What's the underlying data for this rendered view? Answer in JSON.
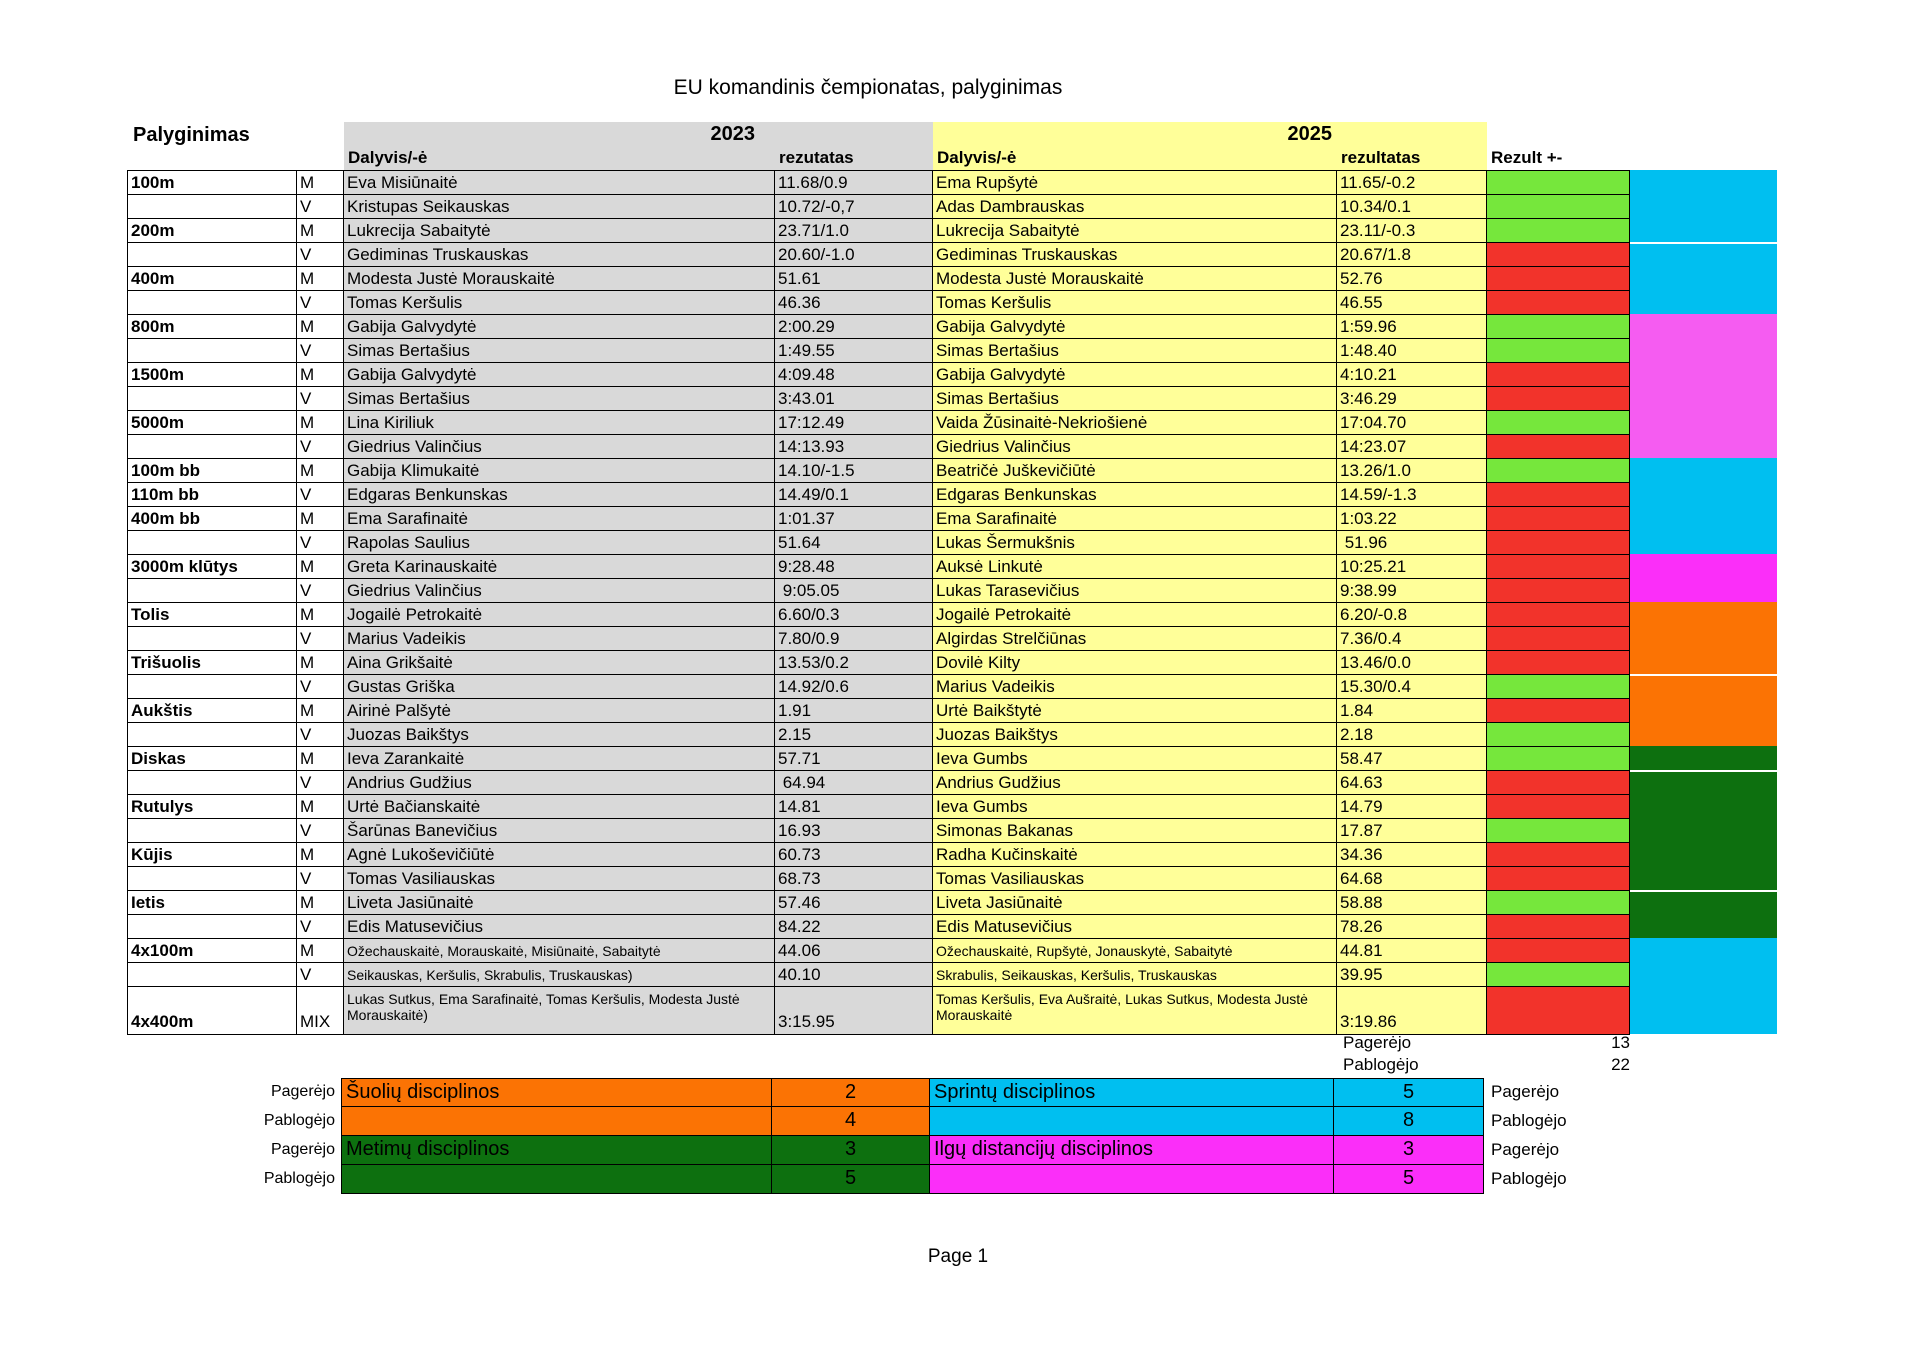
{
  "title": "EU komandinis čempionatas, palyginimas",
  "page_footer": "Page 1",
  "colors": {
    "gray": "#d9d9d9",
    "yellow": "#ffff99",
    "green": "#76e73c",
    "red": "#f2332b",
    "cyan": "#00bff0",
    "magenta_light": "#f55cf1",
    "magenta_bright": "#fb2ef9",
    "orange": "#fb7304",
    "dark_green": "#0d700f"
  },
  "table": {
    "corner_label": "Palyginimas",
    "year_left": "2023",
    "year_right": "2025",
    "col_participant_left": "Dalyvis/-ė",
    "col_result_left": "rezutatas",
    "col_participant_right": "Dalyvis/-ė",
    "col_result_right": "rezultatas",
    "col_diff": "Rezult +-",
    "rows": [
      {
        "event": "100m",
        "sex": "M",
        "p2023": "Eva Misiūnaitė",
        "r2023": "11.68/0.9",
        "p2025": "Ema Rupšytė",
        "r2025": "11.65/-0.2",
        "diff": "better"
      },
      {
        "event": "",
        "sex": "V",
        "p2023": "Kristupas Seikauskas",
        "r2023": "10.72/-0,7",
        "p2025": "Adas Dambrauskas",
        "r2025": "10.34/0.1",
        "diff": "better"
      },
      {
        "event": "200m",
        "sex": "M",
        "p2023": "Lukrecija Sabaitytė",
        "r2023": "23.71/1.0",
        "p2025": "Lukrecija Sabaitytė",
        "r2025": "23.11/-0.3",
        "diff": "better"
      },
      {
        "event": "",
        "sex": "V",
        "p2023": "Gediminas Truskauskas",
        "r2023": "20.60/-1.0",
        "p2025": "Gediminas Truskauskas",
        "r2025": "20.67/1.8",
        "diff": "worse"
      },
      {
        "event": "400m",
        "sex": "M",
        "p2023": "Modesta Justė Morauskaitė",
        "r2023": "51.61",
        "p2025": "Modesta Justė Morauskaitė",
        "r2025": "52.76",
        "diff": "worse"
      },
      {
        "event": "",
        "sex": "V",
        "p2023": "Tomas Keršulis",
        "r2023": "46.36",
        "p2025": "Tomas Keršulis",
        "r2025": "46.55",
        "diff": "worse"
      },
      {
        "event": "800m",
        "sex": "M",
        "p2023": "Gabija Galvydytė",
        "r2023": "2:00.29",
        "p2025": "Gabija Galvydytė",
        "r2025": "1:59.96",
        "diff": "better"
      },
      {
        "event": "",
        "sex": "V",
        "p2023": "Simas Bertašius",
        "r2023": "1:49.55",
        "p2025": "Simas Bertašius",
        "r2025": "1:48.40",
        "diff": "better"
      },
      {
        "event": "1500m",
        "sex": "M",
        "p2023": "Gabija Galvydytė",
        "r2023": "4:09.48",
        "p2025": "Gabija Galvydytė",
        "r2025": "4:10.21",
        "diff": "worse"
      },
      {
        "event": "",
        "sex": "V",
        "p2023": "Simas Bertašius",
        "r2023": "3:43.01",
        "p2025": "Simas Bertašius",
        "r2025": "3:46.29",
        "diff": "worse"
      },
      {
        "event": "5000m",
        "sex": "M",
        "p2023": "Lina Kiriliuk",
        "r2023": "17:12.49",
        "p2025": "Vaida Žūsinaitė-Nekriošienė",
        "r2025": "17:04.70",
        "diff": "better"
      },
      {
        "event": "",
        "sex": "V",
        "p2023": "Giedrius Valinčius",
        "r2023": "14:13.93",
        "p2025": "Giedrius Valinčius",
        "r2025": "14:23.07",
        "diff": "worse"
      },
      {
        "event": "100m bb",
        "sex": "M",
        "p2023": "Gabija Klimukaitė",
        "r2023": "14.10/-1.5",
        "p2025": "Beatričė Juškevičiūtė",
        "r2025": "13.26/1.0",
        "diff": "better"
      },
      {
        "event": "110m bb",
        "sex": "V",
        "p2023": "Edgaras Benkunskas",
        "r2023": "14.49/0.1",
        "p2025": "Edgaras Benkunskas",
        "r2025": "14.59/-1.3",
        "diff": "worse"
      },
      {
        "event": "400m bb",
        "sex": "M",
        "p2023": "Ema Sarafinaitė",
        "r2023": "1:01.37",
        "p2025": "Ema Sarafinaitė",
        "r2025": "1:03.22",
        "diff": "worse"
      },
      {
        "event": "",
        "sex": "V",
        "p2023": "Rapolas Saulius",
        "r2023": "51.64",
        "p2025": "Lukas Šermukšnis",
        "r2025": " 51.96",
        "diff": "worse"
      },
      {
        "event": "3000m klūtys",
        "sex": "M",
        "p2023": "Greta Karinauskaitė",
        "r2023": "9:28.48",
        "p2025": "Auksė Linkutė",
        "r2025": "10:25.21",
        "diff": "worse"
      },
      {
        "event": "",
        "sex": "V",
        "p2023": "Giedrius Valinčius",
        "r2023": " 9:05.05",
        "p2025": "Lukas Tarasevičius",
        "r2025": "9:38.99",
        "diff": "worse"
      },
      {
        "event": "Tolis",
        "sex": "M",
        "p2023": "Jogailė Petrokaitė",
        "r2023": "6.60/0.3",
        "p2025": "Jogailė Petrokaitė",
        "r2025": "6.20/-0.8",
        "diff": "worse"
      },
      {
        "event": "",
        "sex": "V",
        "p2023": "Marius Vadeikis",
        "r2023": "7.80/0.9",
        "p2025": "Algirdas Strelčiūnas",
        "r2025": "7.36/0.4",
        "diff": "worse"
      },
      {
        "event": "Trišuolis",
        "sex": "M",
        "p2023": "Aina Grikšaitė",
        "r2023": "13.53/0.2",
        "p2025": "Dovilė Kilty",
        "r2025": "13.46/0.0",
        "diff": "worse"
      },
      {
        "event": "",
        "sex": "V",
        "p2023": "Gustas Griška",
        "r2023": "14.92/0.6",
        "p2025": "Marius Vadeikis",
        "r2025": "15.30/0.4",
        "diff": "better"
      },
      {
        "event": "Aukštis",
        "sex": "M",
        "p2023": "Airinė Palšytė",
        "r2023": "1.91",
        "p2025": "Urtė Baikštytė",
        "r2025": "1.84",
        "diff": "worse"
      },
      {
        "event": "",
        "sex": "V",
        "p2023": "Juozas Baikštys",
        "r2023": "2.15",
        "p2025": "Juozas Baikštys",
        "r2025": "2.18",
        "diff": "better"
      },
      {
        "event": "Diskas",
        "sex": "M",
        "p2023": "Ieva Zarankaitė",
        "r2023": "57.71",
        "p2025": "Ieva Gumbs",
        "r2025": "58.47",
        "diff": "better"
      },
      {
        "event": "",
        "sex": "V",
        "p2023": "Andrius Gudžius",
        "r2023": " 64.94",
        "p2025": "Andrius Gudžius",
        "r2025": "64.63",
        "diff": "worse"
      },
      {
        "event": "Rutulys",
        "sex": "M",
        "p2023": "Urtė Bačianskaitė",
        "r2023": "14.81",
        "p2025": "Ieva Gumbs",
        "r2025": "14.79",
        "diff": "worse"
      },
      {
        "event": "",
        "sex": "V",
        "p2023": "Šarūnas Banevičius",
        "r2023": "16.93",
        "p2025": "Simonas Bakanas",
        "r2025": "17.87",
        "diff": "better"
      },
      {
        "event": "Kūjis",
        "sex": "M",
        "p2023": "Agnė Lukoševičiūtė",
        "r2023": "60.73",
        "p2025": "Radha Kučinskaitė",
        "r2025": "34.36",
        "diff": "worse"
      },
      {
        "event": "",
        "sex": "V",
        "p2023": "Tomas Vasiliauskas",
        "r2023": "68.73",
        "p2025": "Tomas Vasiliauskas",
        "r2025": "64.68",
        "diff": "worse"
      },
      {
        "event": "Ietis",
        "sex": "M",
        "p2023": "Liveta Jasiūnaitė",
        "r2023": "57.46",
        "p2025": "Liveta Jasiūnaitė",
        "r2025": "58.88",
        "diff": "better"
      },
      {
        "event": "",
        "sex": "V",
        "p2023": "Edis Matusevičius",
        "r2023": "84.22",
        "p2025": "Edis Matusevičius",
        "r2025": "78.26",
        "diff": "worse"
      },
      {
        "event": "4x100m",
        "sex": "M",
        "small": true,
        "p2023": "Ožechauskaitė, Morauskaitė, Misiūnaitė, Sabaitytė",
        "r2023": "44.06",
        "p2025": "Ožechauskaitė, Rupšytė, Jonauskytė, Sabaitytė",
        "r2025": "44.81",
        "diff": "worse"
      },
      {
        "event": "",
        "sex": "V",
        "small": true,
        "p2023": "Seikauskas, Keršulis, Skrabulis, Truskauskas)",
        "r2023": "40.10",
        "p2025": "Skrabulis, Seikauskas, Keršulis, Truskauskas",
        "r2025": "39.95",
        "diff": "better"
      },
      {
        "event": "4x400m",
        "sex": "MIX",
        "small": true,
        "tall": true,
        "p2023": "Lukas Sutkus, Ema Sarafinaitė, Tomas Keršulis, Modesta Justė Morauskaitė)",
        "r2023": "3:15.95",
        "p2025": "Tomas Keršulis, Eva Aušraitė, Lukas Sutkus, Modesta Justė Morauskaitė",
        "r2025": "3:19.86",
        "diff": "worse"
      }
    ]
  },
  "category_blocks": [
    {
      "color": "cyan",
      "units": 3,
      "gap": false
    },
    {
      "color": "cyan",
      "units": 3,
      "gap": true
    },
    {
      "color": "magenta_light",
      "units": 6,
      "gap": false
    },
    {
      "color": "cyan",
      "units": 4,
      "gap": false
    },
    {
      "color": "magenta_bright",
      "units": 2,
      "gap": false
    },
    {
      "color": "orange",
      "units": 3,
      "gap": false
    },
    {
      "color": "orange",
      "units": 3,
      "gap": true
    },
    {
      "color": "dark_green",
      "units": 1,
      "gap": false
    },
    {
      "color": "dark_green",
      "units": 5,
      "gap": true
    },
    {
      "color": "dark_green",
      "units": 2,
      "gap": true
    },
    {
      "color": "cyan",
      "units": 4,
      "gap": false
    }
  ],
  "summary": {
    "improved_label": "Pagerėjo",
    "worsened_label": "Pablogėjo",
    "improved_total": "13",
    "worsened_total": "22",
    "boxes": [
      {
        "name": "Šuolių disciplinos",
        "improved": "2",
        "worsened": "4",
        "color": "orange"
      },
      {
        "name": "Sprintų disciplinos",
        "improved": "5",
        "worsened": "8",
        "color": "cyan"
      },
      {
        "name": "Metimų disciplinos",
        "improved": "3",
        "worsened": "5",
        "color": "dark_green"
      },
      {
        "name": "Ilgų distancijų disciplinos",
        "improved": "3",
        "worsened": "5",
        "color": "magenta"
      }
    ]
  }
}
